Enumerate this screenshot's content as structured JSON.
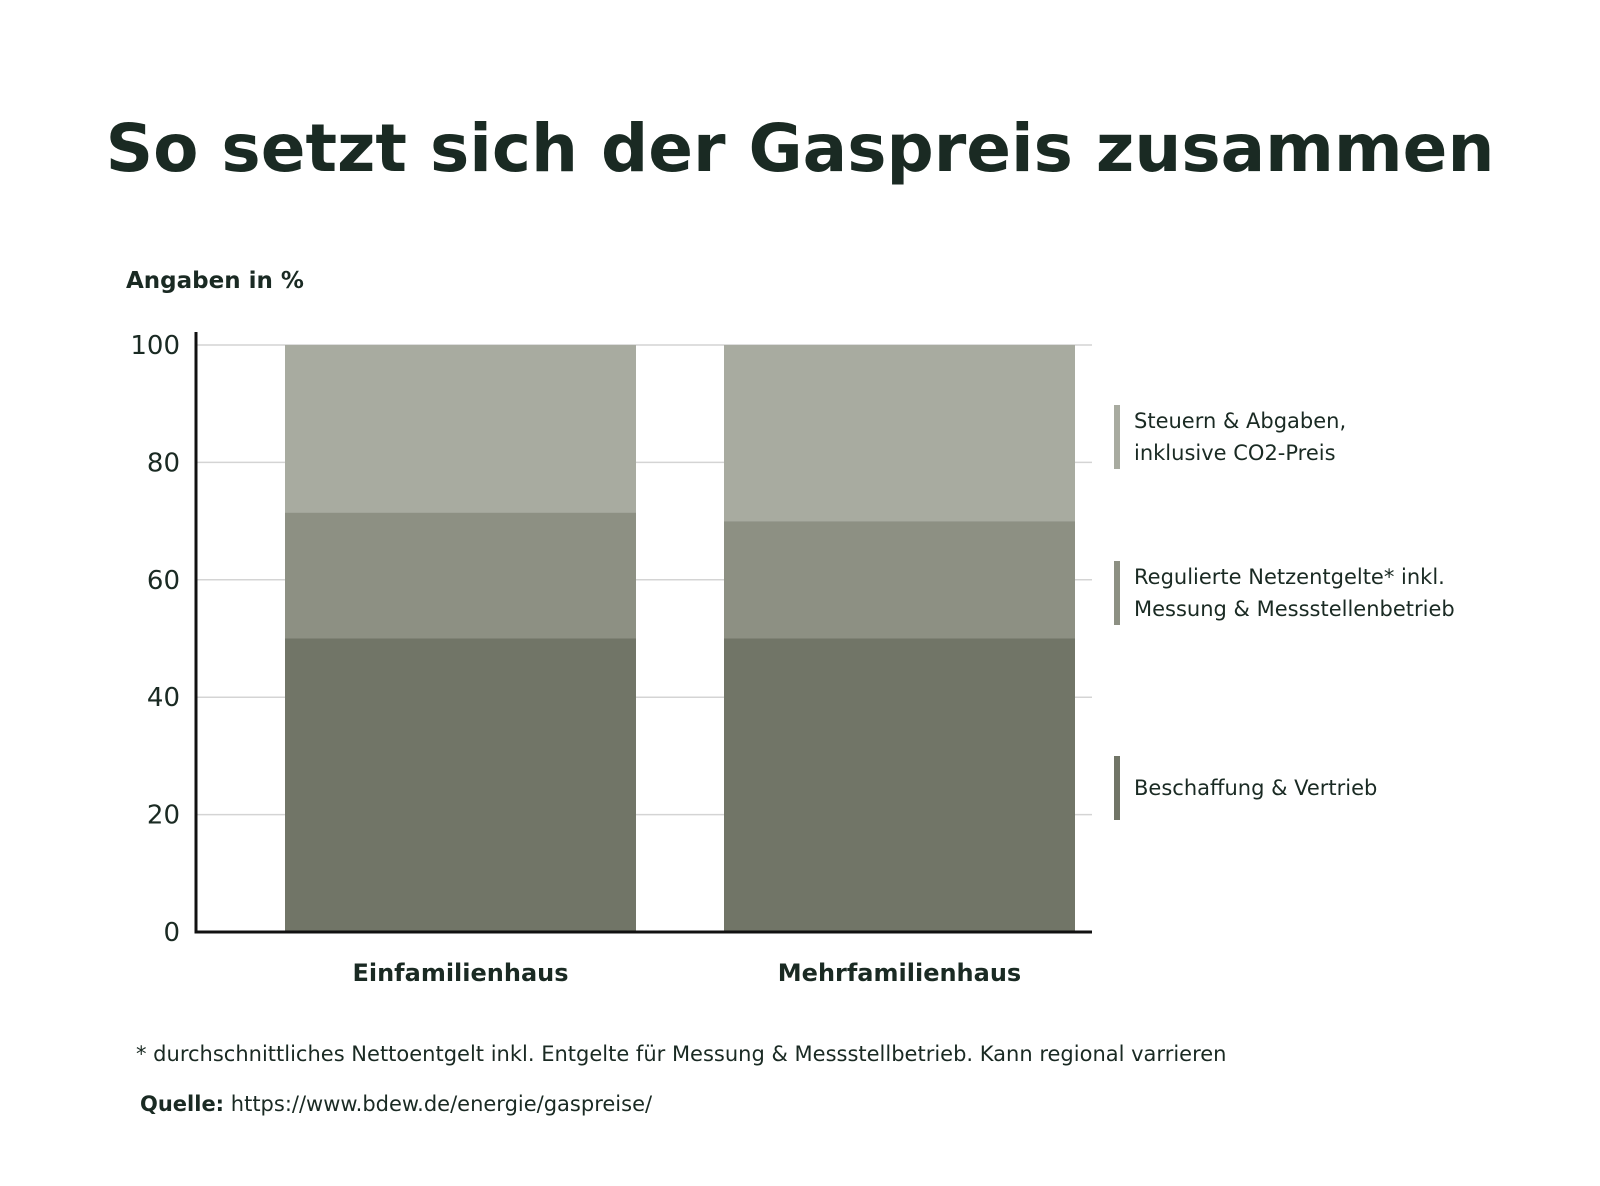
{
  "title": "So setzt sich der Gaspreis zusammen",
  "unit_label": "Angaben in %",
  "chart_data": {
    "type": "bar",
    "stacked": true,
    "categories": [
      "Einfamilienhaus",
      "Mehrfamilienhaus"
    ],
    "series": [
      {
        "name": "Beschaffung & Vertrieb",
        "values": [
          50,
          50
        ],
        "color": "#717567"
      },
      {
        "name": "Regulierte Netzentgelte* inkl. Messung & Messstellenbetrieb",
        "values": [
          21.5,
          20
        ],
        "color": "#8d9083"
      },
      {
        "name": "Steuern & Abgaben, inklusive CO2-Preis",
        "values": [
          28.5,
          30
        ],
        "color": "#a8aba0"
      }
    ],
    "legend": [
      {
        "lines": [
          "Beschaffung & Vertrieb"
        ],
        "color": "#717567"
      },
      {
        "lines": [
          "Regulierte Netzentgelte* inkl.",
          "Messung & Messstellenbetrieb"
        ],
        "color": "#8d9083"
      },
      {
        "lines": [
          "Steuern & Abgaben,",
          "inklusive CO2-Preis"
        ],
        "color": "#a8aba0"
      }
    ],
    "y_ticks": [
      0,
      20,
      40,
      60,
      80,
      100
    ],
    "ylim": [
      0,
      100
    ],
    "grid": true,
    "legend_position": "right",
    "axis_color": "#111111",
    "grid_color": "#d4d4d4",
    "text_color": "#1a2a23"
  },
  "footnote": "* durchschnittliches Nettoentgelt inkl. Entgelte für Messung & Messstellbetrieb. Kann regional varrieren",
  "source": {
    "label": "Quelle:",
    "url": "https://www.bdew.de/energie/gaspreise/"
  }
}
